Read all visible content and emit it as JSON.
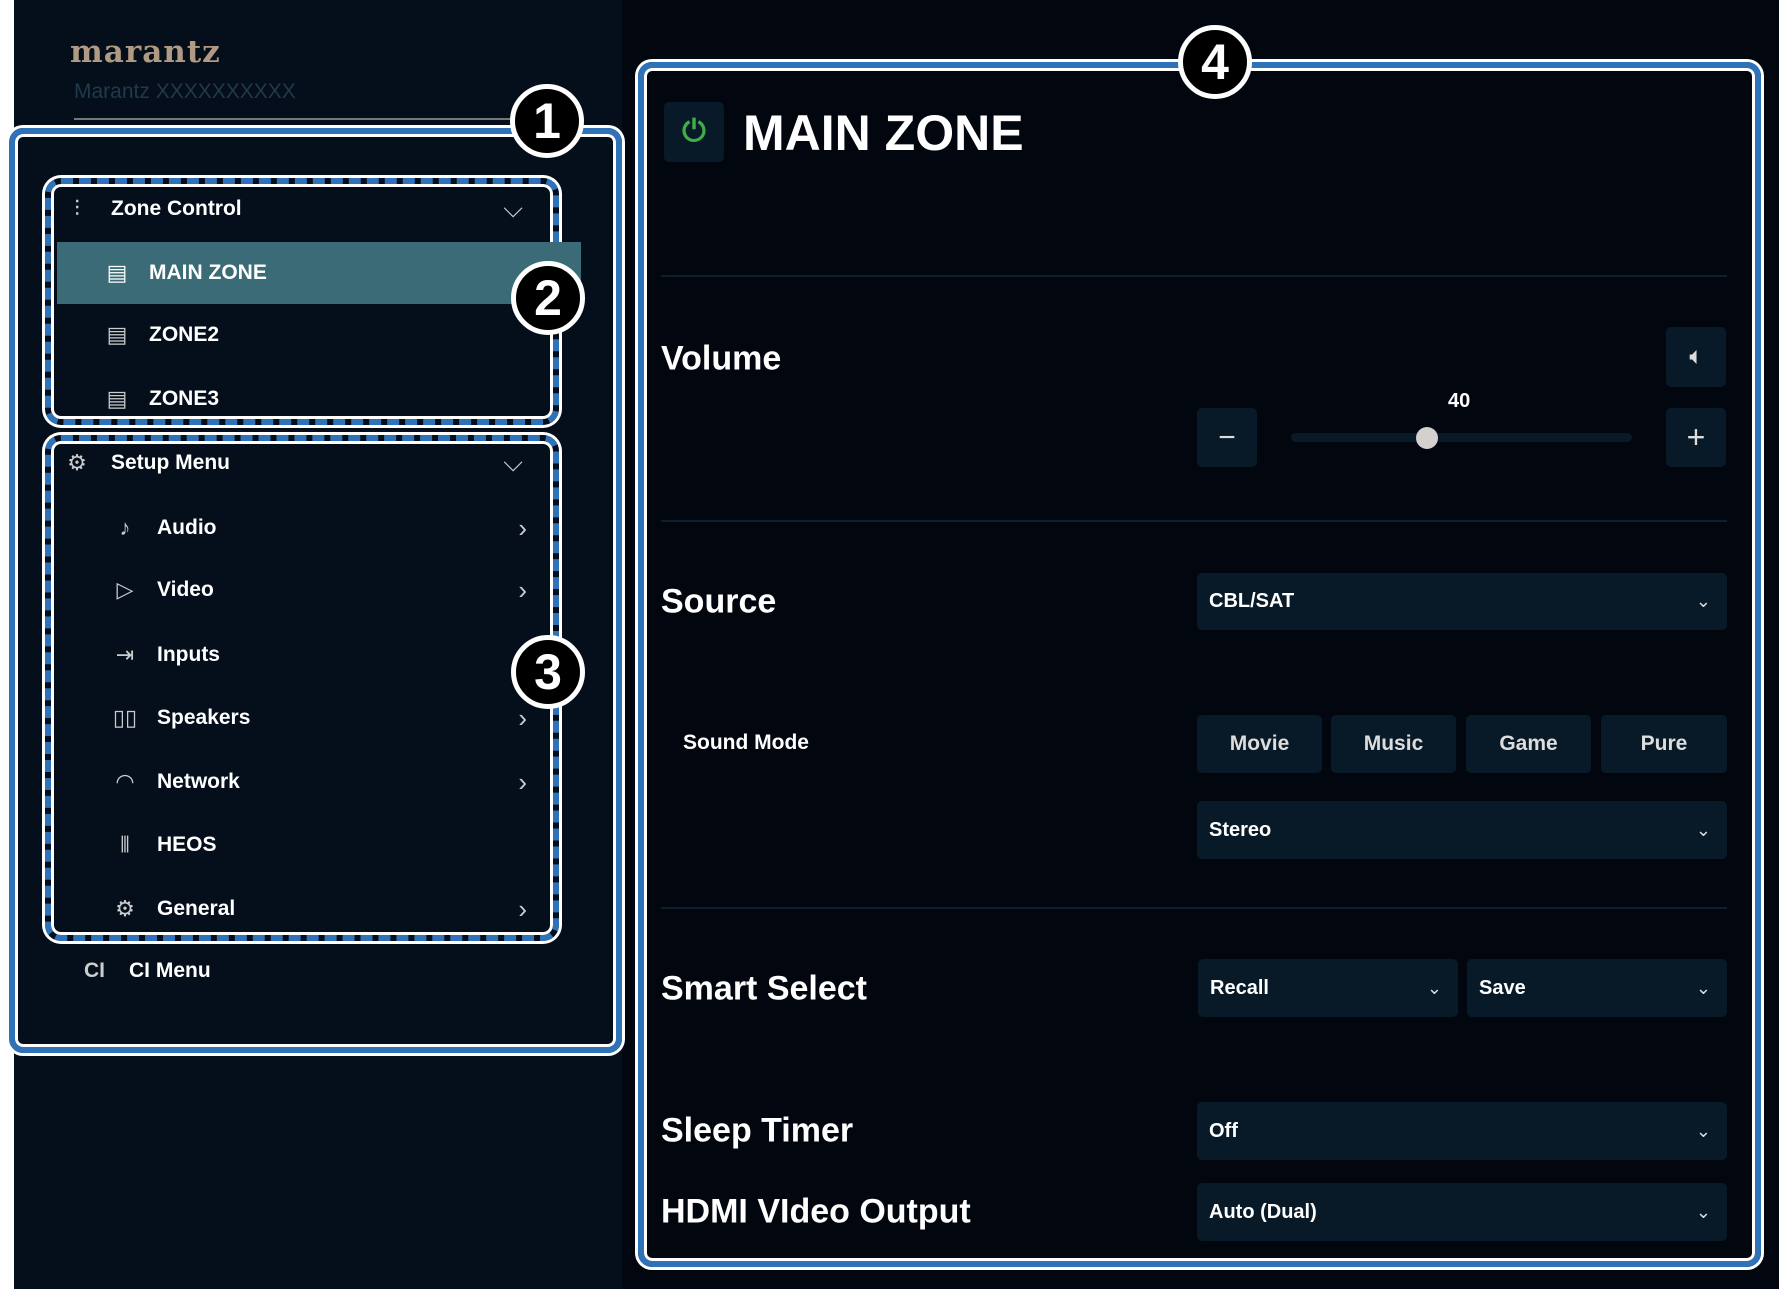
{
  "brand": {
    "logo": "marantz",
    "model": "Marantz XXXXXXXXXX"
  },
  "badges": [
    "1",
    "2",
    "3",
    "4"
  ],
  "zone_control": {
    "label": "Zone Control",
    "items": [
      {
        "label": "MAIN ZONE",
        "active": true
      },
      {
        "label": "ZONE2"
      },
      {
        "label": "ZONE3"
      }
    ]
  },
  "setup_menu": {
    "label": "Setup Menu",
    "items": [
      {
        "label": "Audio",
        "icon": "music-note-icon"
      },
      {
        "label": "Video",
        "icon": "video-icon"
      },
      {
        "label": "Inputs",
        "icon": "inputs-icon"
      },
      {
        "label": "Speakers",
        "icon": "speakers-icon"
      },
      {
        "label": "Network",
        "icon": "wifi-icon"
      },
      {
        "label": "HEOS",
        "icon": "heos-icon"
      },
      {
        "label": "General",
        "icon": "gear-icon"
      }
    ]
  },
  "ci_menu": {
    "icon_text": "CI",
    "label": "CI Menu"
  },
  "main": {
    "title": "MAIN ZONE",
    "volume": {
      "label": "Volume",
      "value": "40",
      "level_percent": 40
    },
    "source": {
      "label": "Source",
      "value": "CBL/SAT"
    },
    "sound_mode": {
      "label": "Sound Mode",
      "buttons": [
        "Movie",
        "Music",
        "Game",
        "Pure"
      ],
      "value": "Stereo"
    },
    "smart_select": {
      "label": "Smart Select",
      "recall": "Recall",
      "save": "Save"
    },
    "sleep_timer": {
      "label": "Sleep Timer",
      "value": "Off"
    },
    "hdmi": {
      "label": "HDMI VIdeo Output",
      "value": "Auto (Dual)"
    }
  },
  "colors": {
    "accent_blue": "#2f72b8",
    "highlight": "#3a6b76",
    "power_green": "#3fae49",
    "logo": "#b19a83"
  }
}
